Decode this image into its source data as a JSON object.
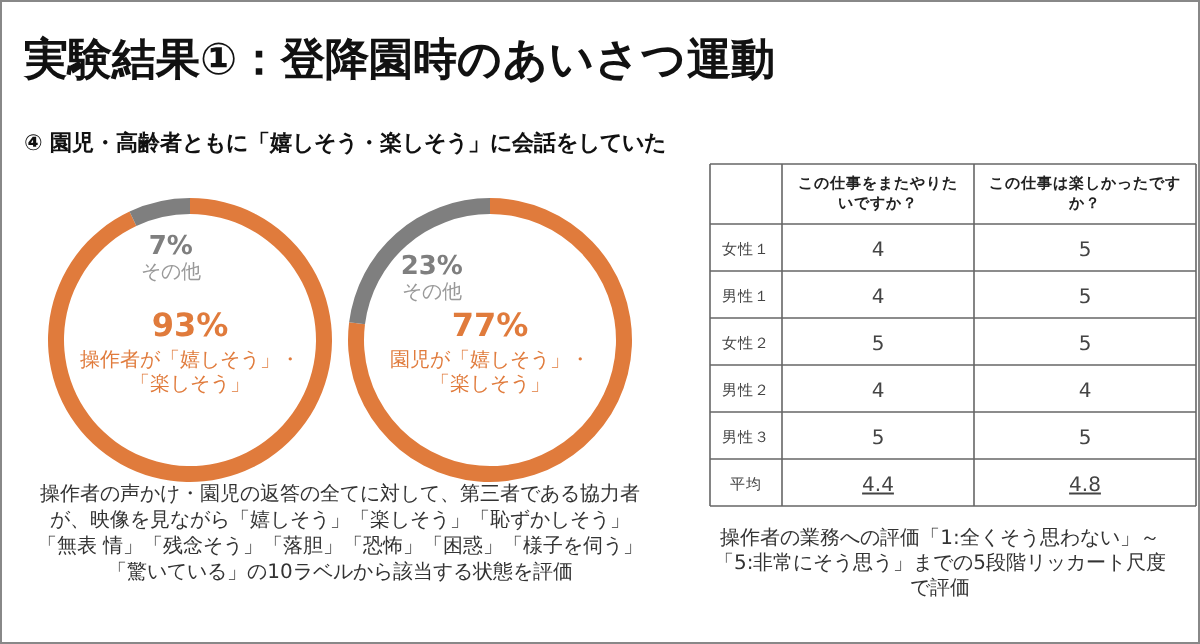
{
  "chart_data": [
    {
      "type": "donut",
      "title": "実験結果①：登降園時のあいさつ運動",
      "subtitle": "④ 園児・高齢者ともに「嬉しそう・楽しそう」に会話をしていた",
      "categories": [
        "操作者が「嬉しそう」・「楽しそう」",
        "その他"
      ],
      "values": [
        93,
        7
      ],
      "colors": [
        "#e07b3c",
        "#7f7f7f"
      ],
      "value_labels": [
        "93%",
        "7%"
      ],
      "annotations": [
        "操作者の声かけ・園児の返答の全てに対して、第三者である協力者が、映像を見ながら「嬉しそう」「楽しそう」「恥ずかしそう」「無表 情」「残念そう」「落胆」「恐怖」「困惑」「様子を伺う」「驚いている」の10ラベルから該当する状態を評価"
      ]
    },
    {
      "type": "donut",
      "categories": [
        "園児が「嬉しそう」・「楽しそう」",
        "その他"
      ],
      "values": [
        77,
        23
      ],
      "colors": [
        "#e07b3c",
        "#7f7f7f"
      ],
      "value_labels": [
        "77%",
        "23%"
      ]
    },
    {
      "type": "heatmap",
      "categories": [
        "この仕事をまたやりたいですか？",
        "この仕事は楽しかったですか？"
      ],
      "y_categories": [
        "女性１",
        "男性１",
        "女性２",
        "男性２",
        "男性３",
        "平均"
      ],
      "cells": [
        [
          4,
          5
        ],
        [
          4,
          5
        ],
        [
          5,
          5
        ],
        [
          4,
          4
        ],
        [
          5,
          5
        ],
        [
          4.4,
          4.8
        ]
      ],
      "data_labels": true,
      "annotations": [
        "操作者の業務への評価「1:全くそう思わない」～「5:非常にそう思う」までの5段階リッカート尺度で評価"
      ]
    }
  ]
}
